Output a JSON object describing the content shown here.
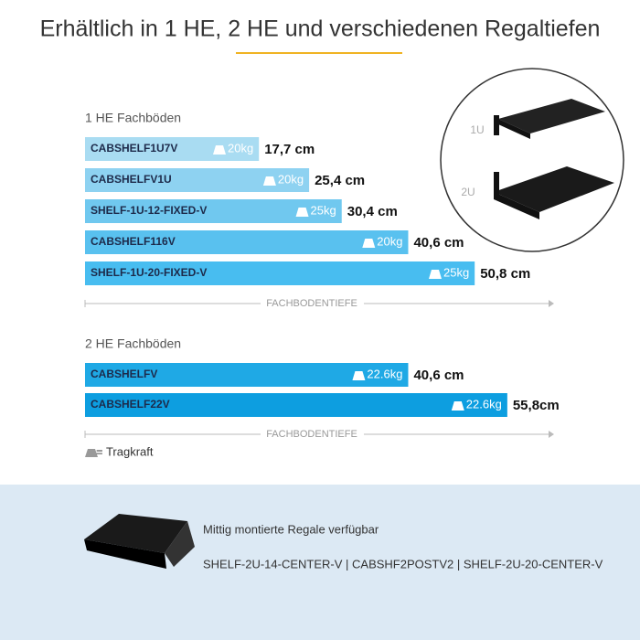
{
  "header": {
    "title": "Erhältlich in 1 HE, 2 HE und verschiedenen Regaltiefen"
  },
  "groups": [
    {
      "title": "1 HE Fachböden",
      "axis_label": "FACHBODENTIEFE",
      "items": [
        {
          "name": "CABSHELF1U7V",
          "load": "20kg",
          "depth": 17.7,
          "depth_label": "17,7 cm",
          "color": "#a9dcf2"
        },
        {
          "name": "CABSHELFV1U",
          "load": "20kg",
          "depth": 25.4,
          "depth_label": "25,4 cm",
          "color": "#8ed2f1"
        },
        {
          "name": "SHELF-1U-12-FIXED-V",
          "load": "25kg",
          "depth": 30.4,
          "depth_label": "30,4 cm",
          "color": "#70c8ef"
        },
        {
          "name": "CABSHELF116V",
          "load": "20kg",
          "depth": 40.6,
          "depth_label": "40,6 cm",
          "color": "#59c1ef"
        },
        {
          "name": "SHELF-1U-20-FIXED-V",
          "load": "25kg",
          "depth": 50.8,
          "depth_label": "50,8 cm",
          "color": "#48bdf0"
        }
      ]
    },
    {
      "title": "2 HE Fachböden",
      "axis_label": "FACHBODENTIEFE",
      "items": [
        {
          "name": "CABSHELFV",
          "load": "22.6kg",
          "depth": 40.6,
          "depth_label": "40,6 cm",
          "color": "#1fa9e5"
        },
        {
          "name": "CABSHELF22V",
          "load": "22.6kg",
          "depth": 55.8,
          "depth_label": "55,8cm",
          "color": "#0d9ee0"
        }
      ]
    }
  ],
  "legend": {
    "label": "= Tragkraft"
  },
  "image": {
    "labels": [
      "1U",
      "2U"
    ]
  },
  "footer": {
    "title": "Mittig montierte Regale verfügbar",
    "models": "SHELF-2U-14-CENTER-V | CABSHF2POSTV2 | SHELF-2U-20-CENTER-V"
  }
}
